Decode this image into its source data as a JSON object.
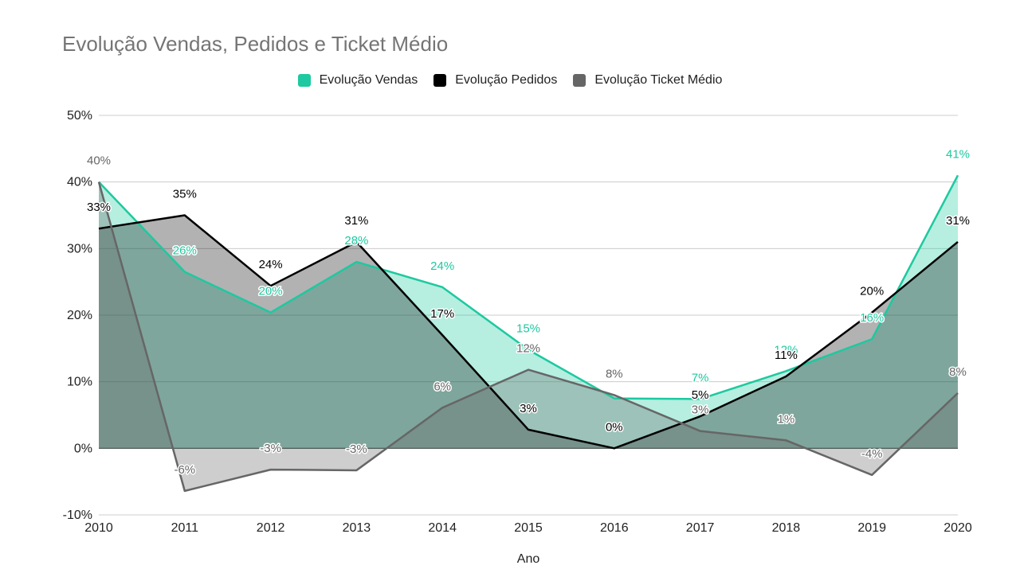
{
  "chart_data": {
    "type": "area",
    "title": "Evolução Vendas, Pedidos e Ticket Médio",
    "xlabel": "Ano",
    "ylabel": "",
    "categories": [
      "2010",
      "2011",
      "2012",
      "2013",
      "2014",
      "2015",
      "2016",
      "2017",
      "2018",
      "2019",
      "2020"
    ],
    "yticks": [
      "50%",
      "40%",
      "30%",
      "20%",
      "10%",
      "0%",
      "-10%"
    ],
    "ylim": [
      -10,
      50
    ],
    "grid": true,
    "legend_position": "top",
    "series": [
      {
        "name": "Evolução Vendas",
        "color": "#1dc9a0",
        "values": [
          40,
          26.5,
          20.4,
          28,
          24.2,
          14.8,
          7.5,
          7.4,
          11.6,
          16.4,
          41
        ],
        "labels": [
          "",
          "26%",
          "20%",
          "28%",
          "24%",
          "15%",
          "",
          "7%",
          "12%",
          "16%",
          "41%"
        ]
      },
      {
        "name": "Evolução Pedidos",
        "color": "#000000",
        "values": [
          33,
          35,
          24.4,
          31,
          17,
          2.8,
          0,
          4.8,
          10.8,
          20.4,
          31
        ],
        "labels": [
          "33%",
          "35%",
          "24%",
          "31%",
          "17%",
          "3%",
          "0%",
          "5%",
          "11%",
          "20%",
          "31%"
        ]
      },
      {
        "name": "Evolução Ticket Médio",
        "color": "#666666",
        "values": [
          40,
          -6.4,
          -3.2,
          -3.3,
          6.1,
          11.8,
          8,
          2.6,
          1.2,
          -4,
          8.3
        ],
        "labels": [
          "40%",
          "-6%",
          "-3%",
          "-3%",
          "6%",
          "12%",
          "8%",
          "3%",
          "1%",
          "-4%",
          "8%"
        ]
      }
    ]
  }
}
